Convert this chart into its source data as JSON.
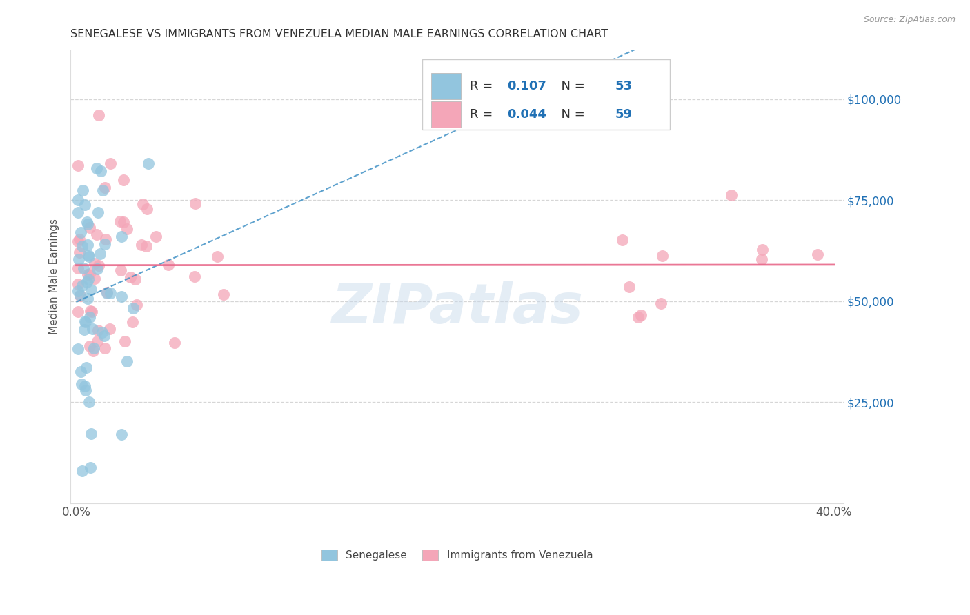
{
  "title": "SENEGALESE VS IMMIGRANTS FROM VENEZUELA MEDIAN MALE EARNINGS CORRELATION CHART",
  "source": "Source: ZipAtlas.com",
  "ylabel": "Median Male Earnings",
  "legend_label1": "Senegalese",
  "legend_label2": "Immigrants from Venezuela",
  "R1": "0.107",
  "N1": "53",
  "R2": "0.044",
  "N2": "59",
  "color_blue": "#92c5de",
  "color_pink": "#f4a6b8",
  "color_blue_line": "#4292c6",
  "color_pink_line": "#e8688a",
  "color_blue_text": "#2171b5",
  "watermark": "ZIPatlas",
  "xlim": [
    0.0,
    0.4
  ],
  "ylim": [
    0,
    112000
  ]
}
